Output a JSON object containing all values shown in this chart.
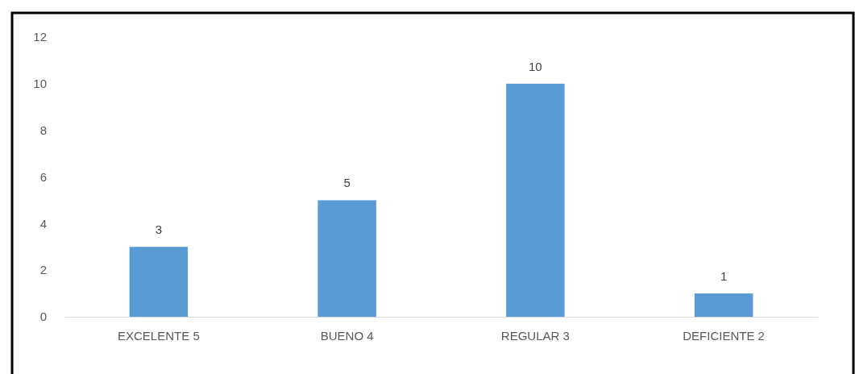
{
  "chart_data": {
    "type": "bar",
    "categories": [
      "EXCELENTE 5",
      "BUENO 4",
      "REGULAR 3",
      "DEFICIENTE 2"
    ],
    "values": [
      3,
      5,
      10,
      1
    ],
    "color": "#5b9bd5",
    "ylim": [
      0,
      12
    ],
    "yticks": [
      0,
      2,
      4,
      6,
      8,
      10,
      12
    ],
    "data_labels": true,
    "grid": false
  }
}
